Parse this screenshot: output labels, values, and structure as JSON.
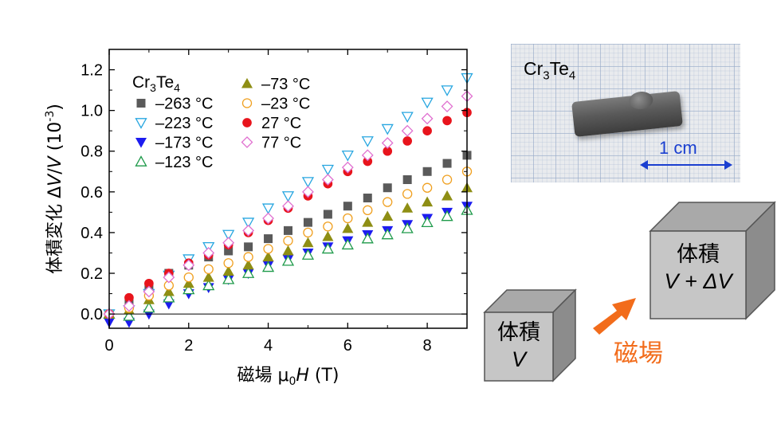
{
  "chart_data": {
    "type": "scatter",
    "title": "",
    "xlabel": "磁場 μ0H (T)",
    "ylabel": "体積変化 ΔV/V (10-3)",
    "xlim": [
      0,
      9
    ],
    "ylim": [
      -0.07,
      1.3
    ],
    "xticks": [
      0,
      2,
      4,
      6,
      8
    ],
    "yticks": [
      0.0,
      0.2,
      0.4,
      0.6,
      0.8,
      1.0,
      1.2
    ],
    "grid": false,
    "legend_placement": "top-left",
    "legend_title": "Cr3Te4",
    "series": [
      {
        "name": "–263 °C",
        "marker": "square-filled",
        "color": "#5a5a5a",
        "x": [
          0,
          0.5,
          1,
          1.5,
          2,
          2.5,
          3,
          3.5,
          4,
          4.5,
          5,
          5.5,
          6,
          6.5,
          7,
          7.5,
          8,
          8.5,
          9
        ],
        "y": [
          0.0,
          0.05,
          0.13,
          0.2,
          0.24,
          0.28,
          0.31,
          0.33,
          0.37,
          0.41,
          0.45,
          0.49,
          0.53,
          0.57,
          0.62,
          0.66,
          0.7,
          0.74,
          0.78
        ]
      },
      {
        "name": "–223 °C",
        "marker": "triangle-down-open",
        "color": "#27a6e0",
        "x": [
          0,
          0.5,
          1,
          1.5,
          2,
          2.5,
          3,
          3.5,
          4,
          4.5,
          5,
          5.5,
          6,
          6.5,
          7,
          7.5,
          8,
          8.5,
          9
        ],
        "y": [
          0.0,
          0.02,
          0.1,
          0.19,
          0.27,
          0.33,
          0.39,
          0.45,
          0.52,
          0.58,
          0.65,
          0.71,
          0.78,
          0.85,
          0.91,
          0.97,
          1.04,
          1.1,
          1.16
        ]
      },
      {
        "name": "–173 °C",
        "marker": "triangle-down-filled",
        "color": "#1c1cf0",
        "x": [
          0,
          0.5,
          1,
          1.5,
          2,
          2.5,
          3,
          3.5,
          4,
          4.5,
          5,
          5.5,
          6,
          6.5,
          7,
          7.5,
          8,
          8.5,
          9
        ],
        "y": [
          -0.04,
          -0.04,
          0.0,
          0.05,
          0.1,
          0.13,
          0.17,
          0.2,
          0.24,
          0.27,
          0.3,
          0.33,
          0.36,
          0.39,
          0.41,
          0.44,
          0.47,
          0.5,
          0.53
        ]
      },
      {
        "name": "–123 °C",
        "marker": "triangle-up-open",
        "color": "#1e9a4a",
        "x": [
          0,
          0.5,
          1,
          1.5,
          2,
          2.5,
          3,
          3.5,
          4,
          4.5,
          5,
          5.5,
          6,
          6.5,
          7,
          7.5,
          8,
          8.5,
          9
        ],
        "y": [
          0.0,
          -0.01,
          0.03,
          0.08,
          0.12,
          0.14,
          0.17,
          0.2,
          0.23,
          0.26,
          0.29,
          0.32,
          0.34,
          0.37,
          0.39,
          0.42,
          0.45,
          0.48,
          0.51
        ]
      },
      {
        "name": "–73 °C",
        "marker": "triangle-up-filled",
        "color": "#8e8e14",
        "x": [
          0,
          0.5,
          1,
          1.5,
          2,
          2.5,
          3,
          3.5,
          4,
          4.5,
          5,
          5.5,
          6,
          6.5,
          7,
          7.5,
          8,
          8.5,
          9
        ],
        "y": [
          0.0,
          0.02,
          0.07,
          0.11,
          0.15,
          0.18,
          0.21,
          0.24,
          0.28,
          0.31,
          0.35,
          0.38,
          0.42,
          0.45,
          0.48,
          0.52,
          0.55,
          0.58,
          0.62
        ]
      },
      {
        "name": "–23 °C",
        "marker": "circle-open",
        "color": "#f0a020",
        "x": [
          0,
          0.5,
          1,
          1.5,
          2,
          2.5,
          3,
          3.5,
          4,
          4.5,
          5,
          5.5,
          6,
          6.5,
          7,
          7.5,
          8,
          8.5,
          9
        ],
        "y": [
          0.0,
          0.03,
          0.09,
          0.14,
          0.18,
          0.22,
          0.25,
          0.28,
          0.32,
          0.36,
          0.4,
          0.43,
          0.47,
          0.51,
          0.55,
          0.59,
          0.62,
          0.66,
          0.7
        ]
      },
      {
        "name": "27 °C",
        "marker": "circle-filled",
        "color": "#e8141c",
        "x": [
          0,
          0.5,
          1,
          1.5,
          2,
          2.5,
          3,
          3.5,
          4,
          4.5,
          5,
          5.5,
          6,
          6.5,
          7,
          7.5,
          8,
          8.5,
          9
        ],
        "y": [
          0.0,
          0.08,
          0.15,
          0.2,
          0.25,
          0.29,
          0.34,
          0.4,
          0.46,
          0.52,
          0.58,
          0.64,
          0.7,
          0.75,
          0.8,
          0.85,
          0.9,
          0.95,
          0.99
        ]
      },
      {
        "name": "77 °C",
        "marker": "diamond-open",
        "color": "#e070d0",
        "x": [
          0,
          0.5,
          1,
          1.5,
          2,
          2.5,
          3,
          3.5,
          4,
          4.5,
          5,
          5.5,
          6,
          6.5,
          7,
          7.5,
          8,
          8.5,
          9
        ],
        "y": [
          0.0,
          0.04,
          0.11,
          0.18,
          0.24,
          0.3,
          0.35,
          0.41,
          0.47,
          0.53,
          0.6,
          0.66,
          0.72,
          0.78,
          0.84,
          0.9,
          0.96,
          1.02,
          1.07
        ]
      }
    ]
  },
  "photo": {
    "label": "Cr",
    "label_sub1": "3",
    "label_mid": "Te",
    "label_sub2": "4",
    "scale_text": "1 cm"
  },
  "cube_small": {
    "line1": "体積",
    "line2": "V"
  },
  "cube_large": {
    "line1": "体積",
    "line2": "V + ΔV"
  },
  "arrow_label": "磁場",
  "colors": {
    "arrow": "#f26c1b",
    "cube_face": "#c6c6c6",
    "cube_top": "#a9a9a9",
    "cube_side": "#8c8c8c",
    "scale_bar": "#1a3fd0"
  }
}
